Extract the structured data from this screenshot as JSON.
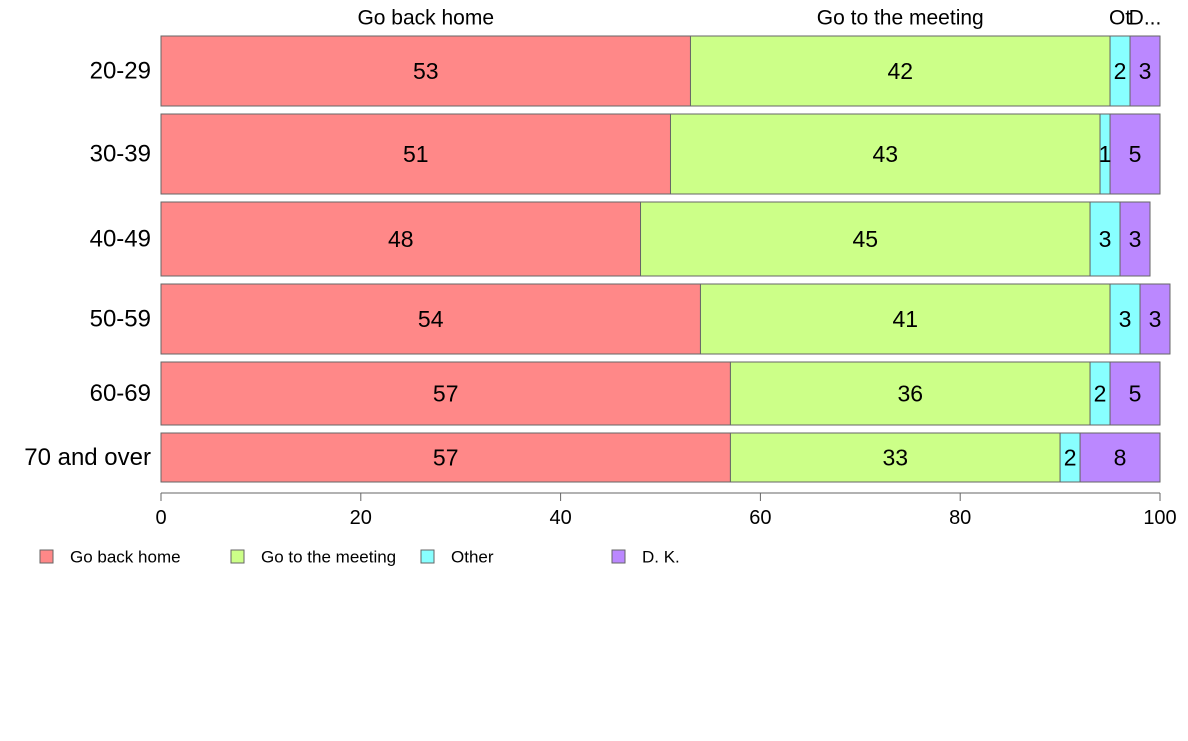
{
  "chart_data": {
    "type": "bar",
    "orientation": "horizontal",
    "stacked": true,
    "categories": [
      "20-29",
      "30-39",
      "40-49",
      "50-59",
      "60-69",
      "70 and over"
    ],
    "series": [
      {
        "name": "Go back home",
        "color": "#ff8888",
        "values": [
          53,
          51,
          48,
          54,
          57,
          57
        ]
      },
      {
        "name": "Go to the meeting",
        "color": "#ccff88",
        "values": [
          42,
          43,
          45,
          41,
          36,
          33
        ]
      },
      {
        "name": "Other",
        "color": "#88ffff",
        "values": [
          2,
          1,
          3,
          3,
          2,
          2
        ]
      },
      {
        "name": "D. K.",
        "color": "#bb88ff",
        "values": [
          3,
          5,
          3,
          3,
          5,
          8
        ]
      }
    ],
    "top_labels": [
      "Go back home",
      "Go to the meeting",
      "Ot",
      "D..."
    ],
    "xlim": [
      0,
      100
    ],
    "xticks": [
      0,
      20,
      40,
      60,
      80,
      100
    ],
    "legend_position": "bottom-left",
    "grid": false
  }
}
